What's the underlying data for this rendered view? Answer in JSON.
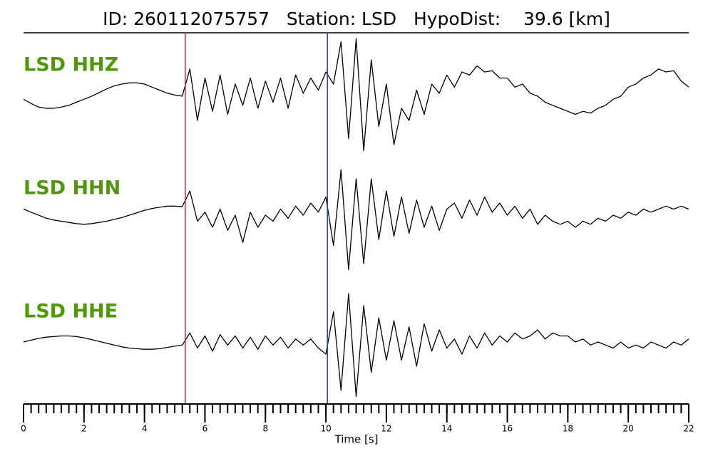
{
  "chart_data": {
    "type": "seismogram",
    "title": "ID: 260112075757   Station: LSD   HypoDist:    39.6 [km]",
    "x_label": "Time [s]",
    "xlim": [
      0,
      22
    ],
    "xticks": [
      0,
      2,
      4,
      6,
      8,
      10,
      12,
      14,
      16,
      18,
      20,
      22
    ],
    "ylim": [
      -1,
      1
    ],
    "label_color": "#4e9a06",
    "picks": [
      {
        "value": 5.35,
        "color": "#d62728"
      },
      {
        "value": 10.05,
        "color": "#2a3bbd"
      }
    ],
    "x": [
      0,
      0.25,
      0.5,
      0.75,
      1,
      1.25,
      1.5,
      1.75,
      2,
      2.25,
      2.5,
      2.75,
      3,
      3.25,
      3.5,
      3.75,
      4,
      4.25,
      4.5,
      4.75,
      5,
      5.25,
      5.5,
      5.75,
      6,
      6.25,
      6.5,
      6.75,
      7,
      7.25,
      7.5,
      7.75,
      8,
      8.25,
      8.5,
      8.75,
      9,
      9.25,
      9.5,
      9.75,
      10,
      10.25,
      10.5,
      10.75,
      11,
      11.25,
      11.5,
      11.75,
      12,
      12.25,
      12.5,
      12.75,
      13,
      13.25,
      13.5,
      13.75,
      14,
      14.25,
      14.5,
      14.75,
      15,
      15.25,
      15.5,
      15.75,
      16,
      16.25,
      16.5,
      16.75,
      17,
      17.25,
      17.5,
      17.75,
      18,
      18.25,
      18.5,
      18.75,
      19,
      19.25,
      19.5,
      19.75,
      20,
      20.25,
      20.5,
      20.75,
      21,
      21.25,
      21.5,
      21.75,
      22
    ],
    "series": [
      {
        "name": "LSD HHZ",
        "color": "#000000",
        "values": [
          -0.05,
          -0.12,
          -0.18,
          -0.2,
          -0.2,
          -0.18,
          -0.15,
          -0.1,
          -0.05,
          0,
          0.06,
          0.12,
          0.17,
          0.2,
          0.22,
          0.22,
          0.2,
          0.15,
          0.1,
          0.05,
          0.02,
          0,
          0.45,
          -0.4,
          0.3,
          -0.25,
          0.35,
          -0.3,
          0.2,
          -0.15,
          0.3,
          -0.2,
          0.25,
          -0.1,
          0.3,
          -0.2,
          0.35,
          0.05,
          0.3,
          0.1,
          0.4,
          0.2,
          0.9,
          -0.7,
          0.95,
          -0.9,
          0.6,
          -0.5,
          0.2,
          -0.8,
          -0.2,
          -0.4,
          0.1,
          -0.3,
          0.2,
          0.05,
          0.35,
          0.15,
          0.4,
          0.35,
          0.5,
          0.4,
          0.42,
          0.3,
          0.3,
          0.15,
          0.2,
          0.05,
          0,
          -0.1,
          -0.15,
          -0.2,
          -0.25,
          -0.3,
          -0.25,
          -0.28,
          -0.2,
          -0.15,
          -0.05,
          0,
          0.15,
          0.2,
          0.3,
          0.35,
          0.45,
          0.4,
          0.42,
          0.25,
          0.15
        ]
      },
      {
        "name": "LSD HHN",
        "color": "#000000",
        "values": [
          0.1,
          0.05,
          0,
          -0.05,
          -0.08,
          -0.1,
          -0.12,
          -0.14,
          -0.15,
          -0.14,
          -0.12,
          -0.1,
          -0.07,
          -0.04,
          0,
          0.04,
          0.08,
          0.11,
          0.13,
          0.15,
          0.15,
          0.14,
          0.4,
          -0.1,
          0.05,
          -0.2,
          0.1,
          -0.25,
          0,
          -0.45,
          0.05,
          -0.2,
          0,
          -0.1,
          0.1,
          -0.05,
          0.15,
          0,
          0.2,
          0.05,
          0.3,
          -0.5,
          0.75,
          -0.9,
          0.6,
          -0.8,
          0.6,
          -0.4,
          0.4,
          -0.35,
          0.3,
          -0.3,
          0.25,
          -0.2,
          0.15,
          -0.25,
          0.1,
          0.2,
          -0.05,
          0.25,
          0,
          0.3,
          0.05,
          0.2,
          0,
          0.15,
          -0.05,
          0.1,
          -0.15,
          0,
          -0.1,
          -0.15,
          -0.1,
          -0.2,
          -0.1,
          -0.15,
          -0.05,
          -0.1,
          0,
          -0.05,
          0.05,
          0,
          0.1,
          0.05,
          0.1,
          0.15,
          0.1,
          0.15,
          0.1
        ]
      },
      {
        "name": "LSD HHE",
        "color": "#000000",
        "values": [
          0,
          0.03,
          0.06,
          0.08,
          0.09,
          0.1,
          0.1,
          0.09,
          0.07,
          0.04,
          0.01,
          -0.02,
          -0.05,
          -0.08,
          -0.1,
          -0.11,
          -0.12,
          -0.12,
          -0.11,
          -0.09,
          -0.07,
          -0.05,
          0.15,
          -0.1,
          0.1,
          -0.15,
          0.12,
          -0.05,
          0.1,
          -0.1,
          0.08,
          -0.12,
          0.1,
          -0.05,
          0.08,
          -0.1,
          0.05,
          -0.05,
          0.05,
          -0.1,
          -0.2,
          0.5,
          -0.8,
          0.8,
          -0.9,
          0.6,
          -0.5,
          0.4,
          -0.3,
          0.35,
          -0.3,
          0.25,
          -0.4,
          0.3,
          -0.15,
          0.2,
          -0.1,
          0.05,
          -0.2,
          0.1,
          -0.1,
          0.15,
          -0.05,
          0.1,
          0,
          0.15,
          0.05,
          0.1,
          0.2,
          0.05,
          0.15,
          0.1,
          0.1,
          0,
          0.05,
          -0.05,
          0,
          -0.05,
          -0.1,
          0,
          -0.1,
          -0.05,
          -0.1,
          0,
          -0.05,
          -0.1,
          0,
          -0.05,
          0.05
        ]
      }
    ]
  }
}
